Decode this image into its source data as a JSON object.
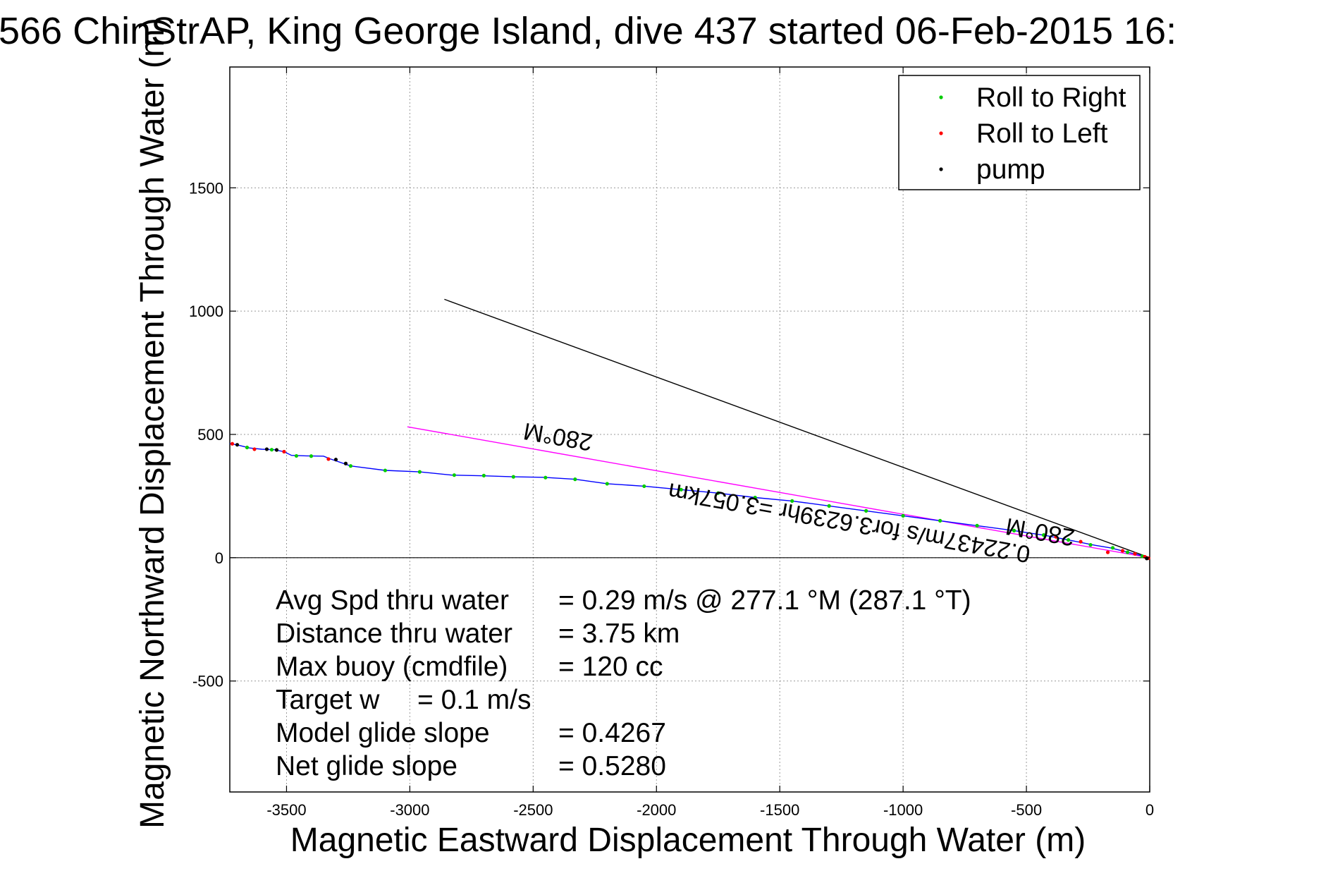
{
  "chart_data": {
    "type": "scatter",
    "title": "566 ChinStrAP, King George Island, dive 437 started 06-Feb-2015 16:",
    "xlabel": "Magnetic Eastward Displacement Through Water (m)",
    "ylabel": "Magnetic Northward Displacement Through Water (m)",
    "xlim": [
      -3730,
      0
    ],
    "ylim": [
      -950,
      1990
    ],
    "xticks": [
      -3500,
      -3000,
      -2500,
      -2000,
      -1500,
      -1000,
      -500,
      0
    ],
    "yticks": [
      -500,
      0,
      500,
      1000,
      1500
    ],
    "grid": true,
    "legend_position": "top-right",
    "legend": [
      {
        "label": "Roll to Right",
        "color": "#00cc00"
      },
      {
        "label": "Roll to Left",
        "color": "#ff0000"
      },
      {
        "label": "pump",
        "color": "#000000"
      }
    ],
    "track": {
      "color": "#0000ff",
      "x": [
        -3730,
        -3690,
        -3650,
        -3600,
        -3550,
        -3510,
        -3480,
        -3420,
        -3350,
        -3320,
        -3240,
        -3100,
        -2960,
        -2830,
        -2700,
        -2580,
        -2460,
        -2330,
        -2200,
        -2050,
        -1900,
        -1750,
        -1600,
        -1450,
        -1300,
        -1150,
        -1000,
        -850,
        -700,
        -550,
        -420,
        -320,
        -220,
        -160,
        -120,
        -80,
        -40,
        -10,
        0
      ],
      "y": [
        463,
        455,
        445,
        440,
        438,
        430,
        415,
        413,
        412,
        400,
        372,
        354,
        348,
        335,
        332,
        328,
        326,
        318,
        300,
        290,
        276,
        262,
        244,
        230,
        210,
        190,
        170,
        150,
        130,
        110,
        90,
        70,
        50,
        40,
        30,
        20,
        10,
        2,
        -3
      ]
    },
    "series": [
      {
        "name": "Roll to Right",
        "color": "#00cc00",
        "x": [
          -3660,
          -3560,
          -3460,
          -3400,
          -3240,
          -3100,
          -2960,
          -2820,
          -2700,
          -2580,
          -2450,
          -2330,
          -2200,
          -2050,
          -1900,
          -1750,
          -1600,
          -1450,
          -1300,
          -1150,
          -1000,
          -850,
          -700,
          -550,
          -430,
          -330,
          -240,
          -150,
          -90,
          -30
        ],
        "y": [
          447,
          438,
          413,
          412,
          372,
          354,
          348,
          335,
          333,
          328,
          325,
          318,
          300,
          290,
          276,
          262,
          244,
          230,
          210,
          190,
          170,
          150,
          130,
          110,
          92,
          72,
          52,
          40,
          22,
          6
        ]
      },
      {
        "name": "Roll to Left",
        "color": "#ff0000",
        "x": [
          -3720,
          -3630,
          -3510,
          -3330,
          -380,
          -280,
          -170,
          -110,
          -60,
          -20,
          -5
        ],
        "y": [
          462,
          440,
          430,
          400,
          85,
          65,
          22,
          28,
          16,
          4,
          -2
        ]
      },
      {
        "name": "pump",
        "color": "#000000",
        "x": [
          -3700,
          -3580,
          -3540,
          -3300,
          -3260,
          -12
        ],
        "y": [
          458,
          440,
          437,
          398,
          382,
          -3
        ]
      }
    ],
    "lines": [
      {
        "color": "#000000",
        "x": [
          -2860,
          0
        ],
        "y": [
          1048,
          0
        ]
      },
      {
        "color": "#ff00ff",
        "x": [
          -3010,
          0
        ],
        "y": [
          531,
          0
        ]
      }
    ],
    "annotations": {
      "heading_upper": "280°M",
      "heading_lower": "280°M",
      "speed_text": "0.22437m/s for3.6239hr =3.057km"
    },
    "stats": [
      {
        "label": "Avg Spd thru water",
        "value": "=  0.29 m/s @ 277.1 °M (287.1 °T)"
      },
      {
        "label": "Distance thru water",
        "value": "=  3.75 km"
      },
      {
        "label": "Max buoy (cmdfile)",
        "value": "= 120 cc"
      },
      {
        "label": "Target w",
        "value": "= 0.1 m/s"
      },
      {
        "label": "Model glide slope",
        "value": "= 0.4267"
      },
      {
        "label": "Net glide slope",
        "value": "= 0.5280"
      }
    ]
  }
}
